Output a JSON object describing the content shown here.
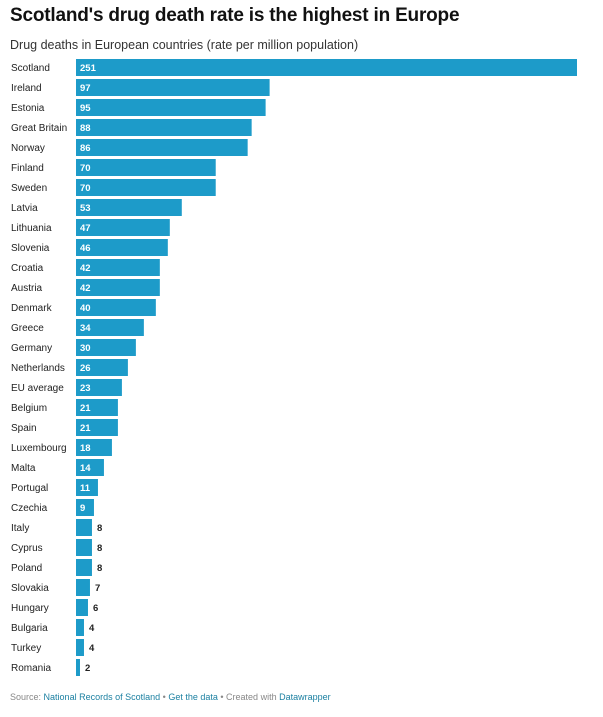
{
  "title": "Scotland's drug death rate is the highest in Europe",
  "subtitle": "Drug deaths in European countries (rate per million population)",
  "footer": {
    "source_label": "Source:",
    "source": "National Records of Scotland",
    "sep1": "•",
    "get_data": "Get the data",
    "sep2": "•",
    "created_with": "Created with",
    "tool": "Datawrapper"
  },
  "colors": {
    "bar": "#1d9bc9"
  },
  "chart_data": {
    "type": "bar",
    "orientation": "horizontal",
    "categories": [
      "Scotland",
      "Ireland",
      "Estonia",
      "Great Britain",
      "Norway",
      "Finland",
      "Sweden",
      "Latvia",
      "Lithuania",
      "Slovenia",
      "Croatia",
      "Austria",
      "Denmark",
      "Greece",
      "Germany",
      "Netherlands",
      "EU average",
      "Belgium",
      "Spain",
      "Luxembourg",
      "Malta",
      "Portugal",
      "Czechia",
      "Italy",
      "Cyprus",
      "Poland",
      "Slovakia",
      "Hungary",
      "Bulgaria",
      "Turkey",
      "Romania"
    ],
    "values": [
      251,
      97,
      95,
      88,
      86,
      70,
      70,
      53,
      47,
      46,
      42,
      42,
      40,
      34,
      30,
      26,
      23,
      21,
      21,
      18,
      14,
      11,
      9,
      8,
      8,
      8,
      7,
      6,
      4,
      4,
      2
    ],
    "xlim": [
      0,
      251
    ]
  }
}
